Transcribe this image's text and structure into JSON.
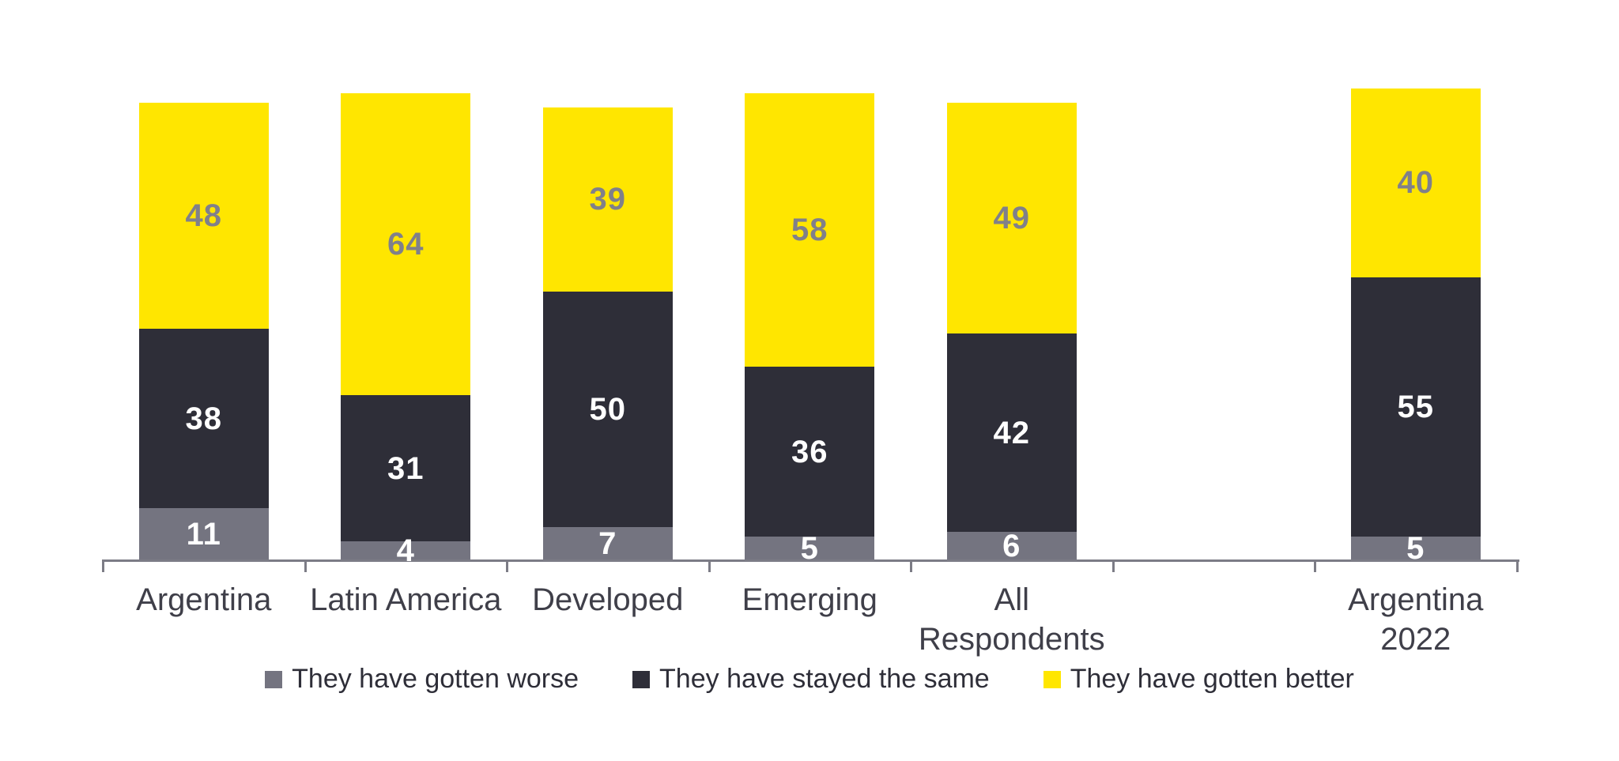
{
  "chart_data": {
    "type": "bar",
    "variant": "stacked-vertical",
    "title": "",
    "xlabel": "",
    "ylabel": "",
    "ylim": [
      0,
      100
    ],
    "grid": false,
    "legend_position": "bottom",
    "categories": [
      "Argentina",
      "Latin America",
      "Developed",
      "Emerging",
      "All\nRespondents",
      "",
      "Argentina\n2022"
    ],
    "spacer_slots": [
      5
    ],
    "series": [
      {
        "name": "They have gotten worse",
        "color": "#747480",
        "label_color": "#FFFFFF",
        "values": [
          11,
          4,
          7,
          5,
          6,
          null,
          5
        ]
      },
      {
        "name": "They have stayed the same",
        "color": "#2E2E38",
        "label_color": "#FFFFFF",
        "values": [
          38,
          31,
          50,
          36,
          42,
          null,
          55
        ]
      },
      {
        "name": "They have gotten better",
        "color": "#FFE600",
        "label_color": "#80808A",
        "values": [
          48,
          64,
          39,
          58,
          49,
          null,
          40
        ]
      }
    ],
    "totals": [
      97,
      99,
      96,
      99,
      97,
      null,
      100
    ],
    "axis_color": "#7C7C86",
    "category_label_color": "#3F3F49",
    "legend_text_color": "#2E2E38",
    "background_color": "#FFFFFF"
  }
}
